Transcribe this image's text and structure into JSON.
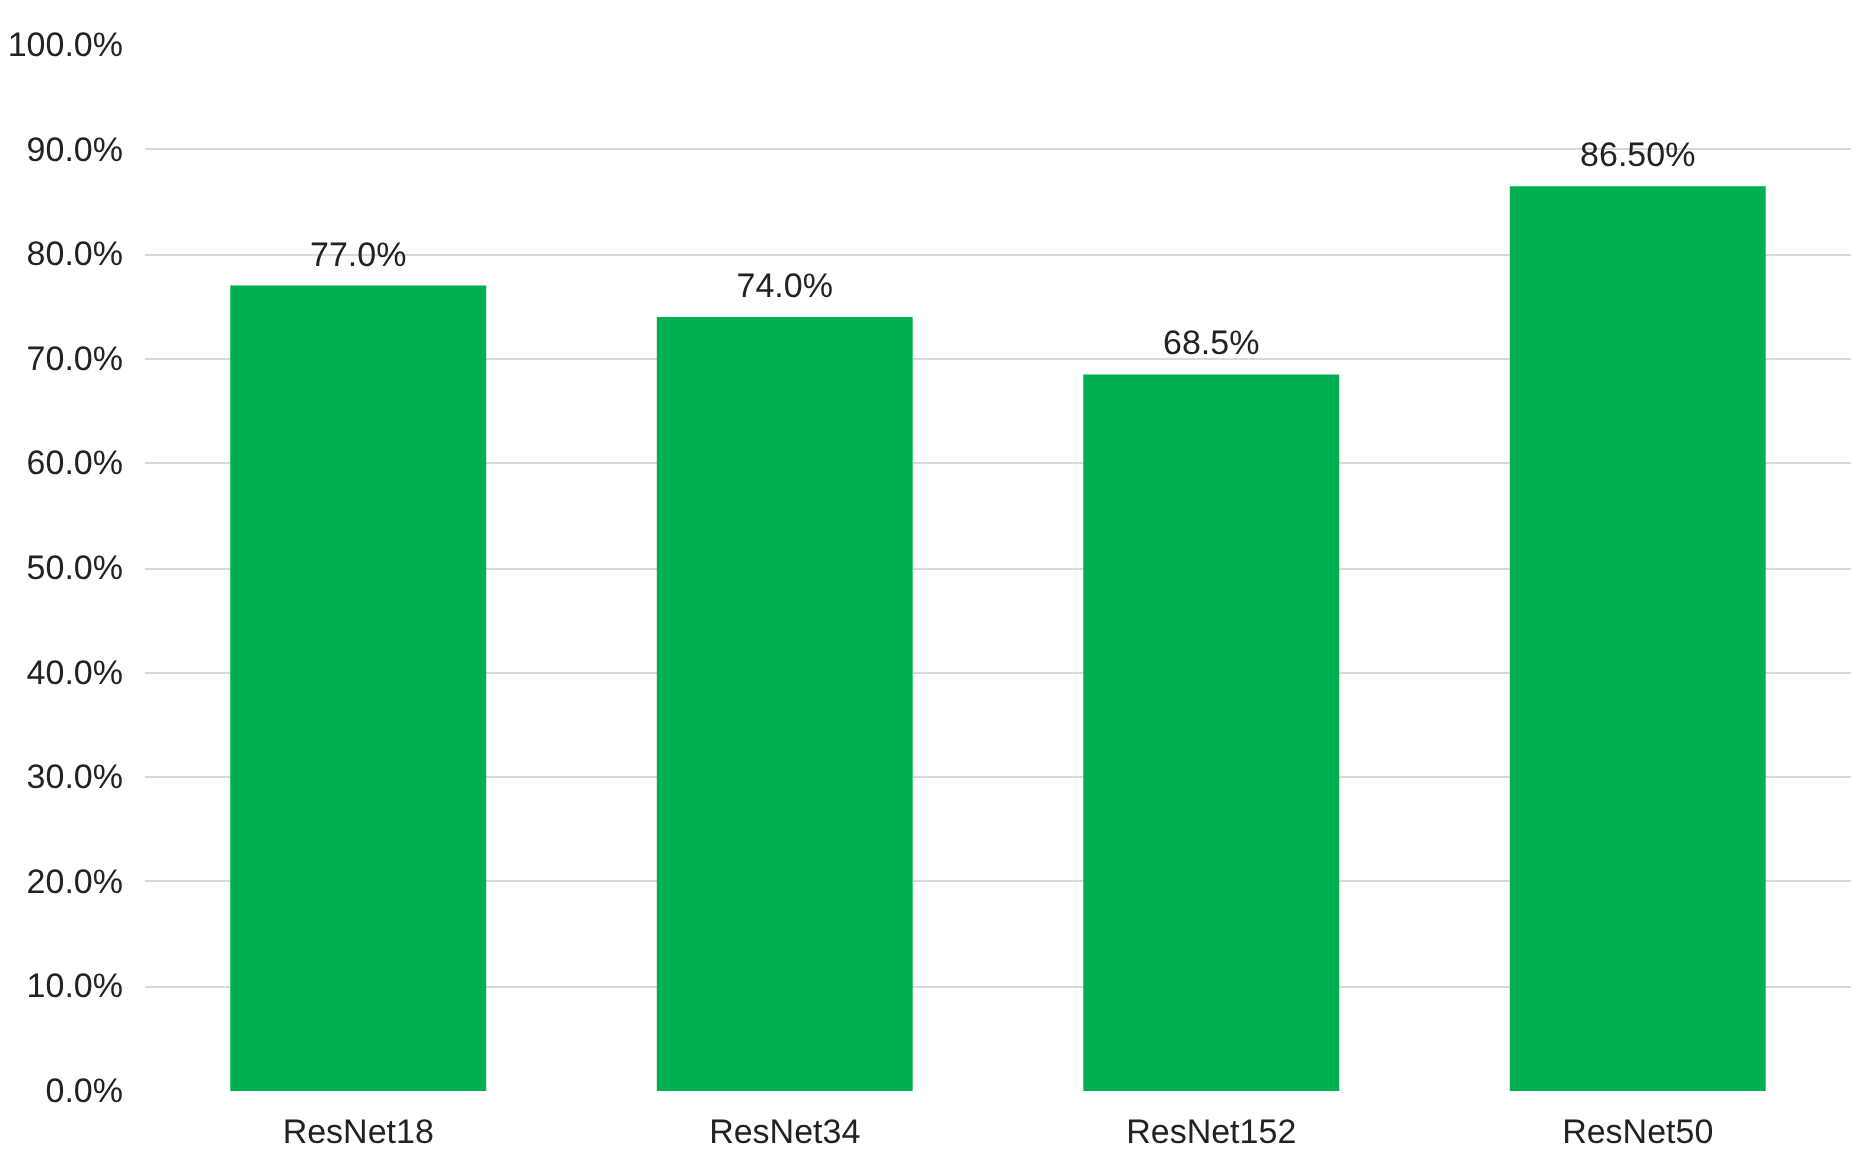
{
  "chart_data": {
    "type": "bar",
    "categories": [
      "ResNet18",
      "ResNet34",
      "ResNet152",
      "ResNet50"
    ],
    "values": [
      77.0,
      74.0,
      68.5,
      86.5
    ],
    "value_labels": [
      "77.0%",
      "74.0%",
      "68.5%",
      "86.50%"
    ],
    "color": "#00b050",
    "ylim": [
      0,
      100
    ],
    "yticks": [
      {
        "value": 0,
        "label": "0.0%"
      },
      {
        "value": 10,
        "label": "10.0%"
      },
      {
        "value": 20,
        "label": "20.0%"
      },
      {
        "value": 30,
        "label": "30.0%"
      },
      {
        "value": 40,
        "label": "40.0%"
      },
      {
        "value": 50,
        "label": "50.0%"
      },
      {
        "value": 60,
        "label": "60.0%"
      },
      {
        "value": 70,
        "label": "70.0%"
      },
      {
        "value": 80,
        "label": "80.0%"
      },
      {
        "value": 90,
        "label": "90.0%"
      },
      {
        "value": 100,
        "label": "100.0%"
      }
    ],
    "grid": "y"
  }
}
